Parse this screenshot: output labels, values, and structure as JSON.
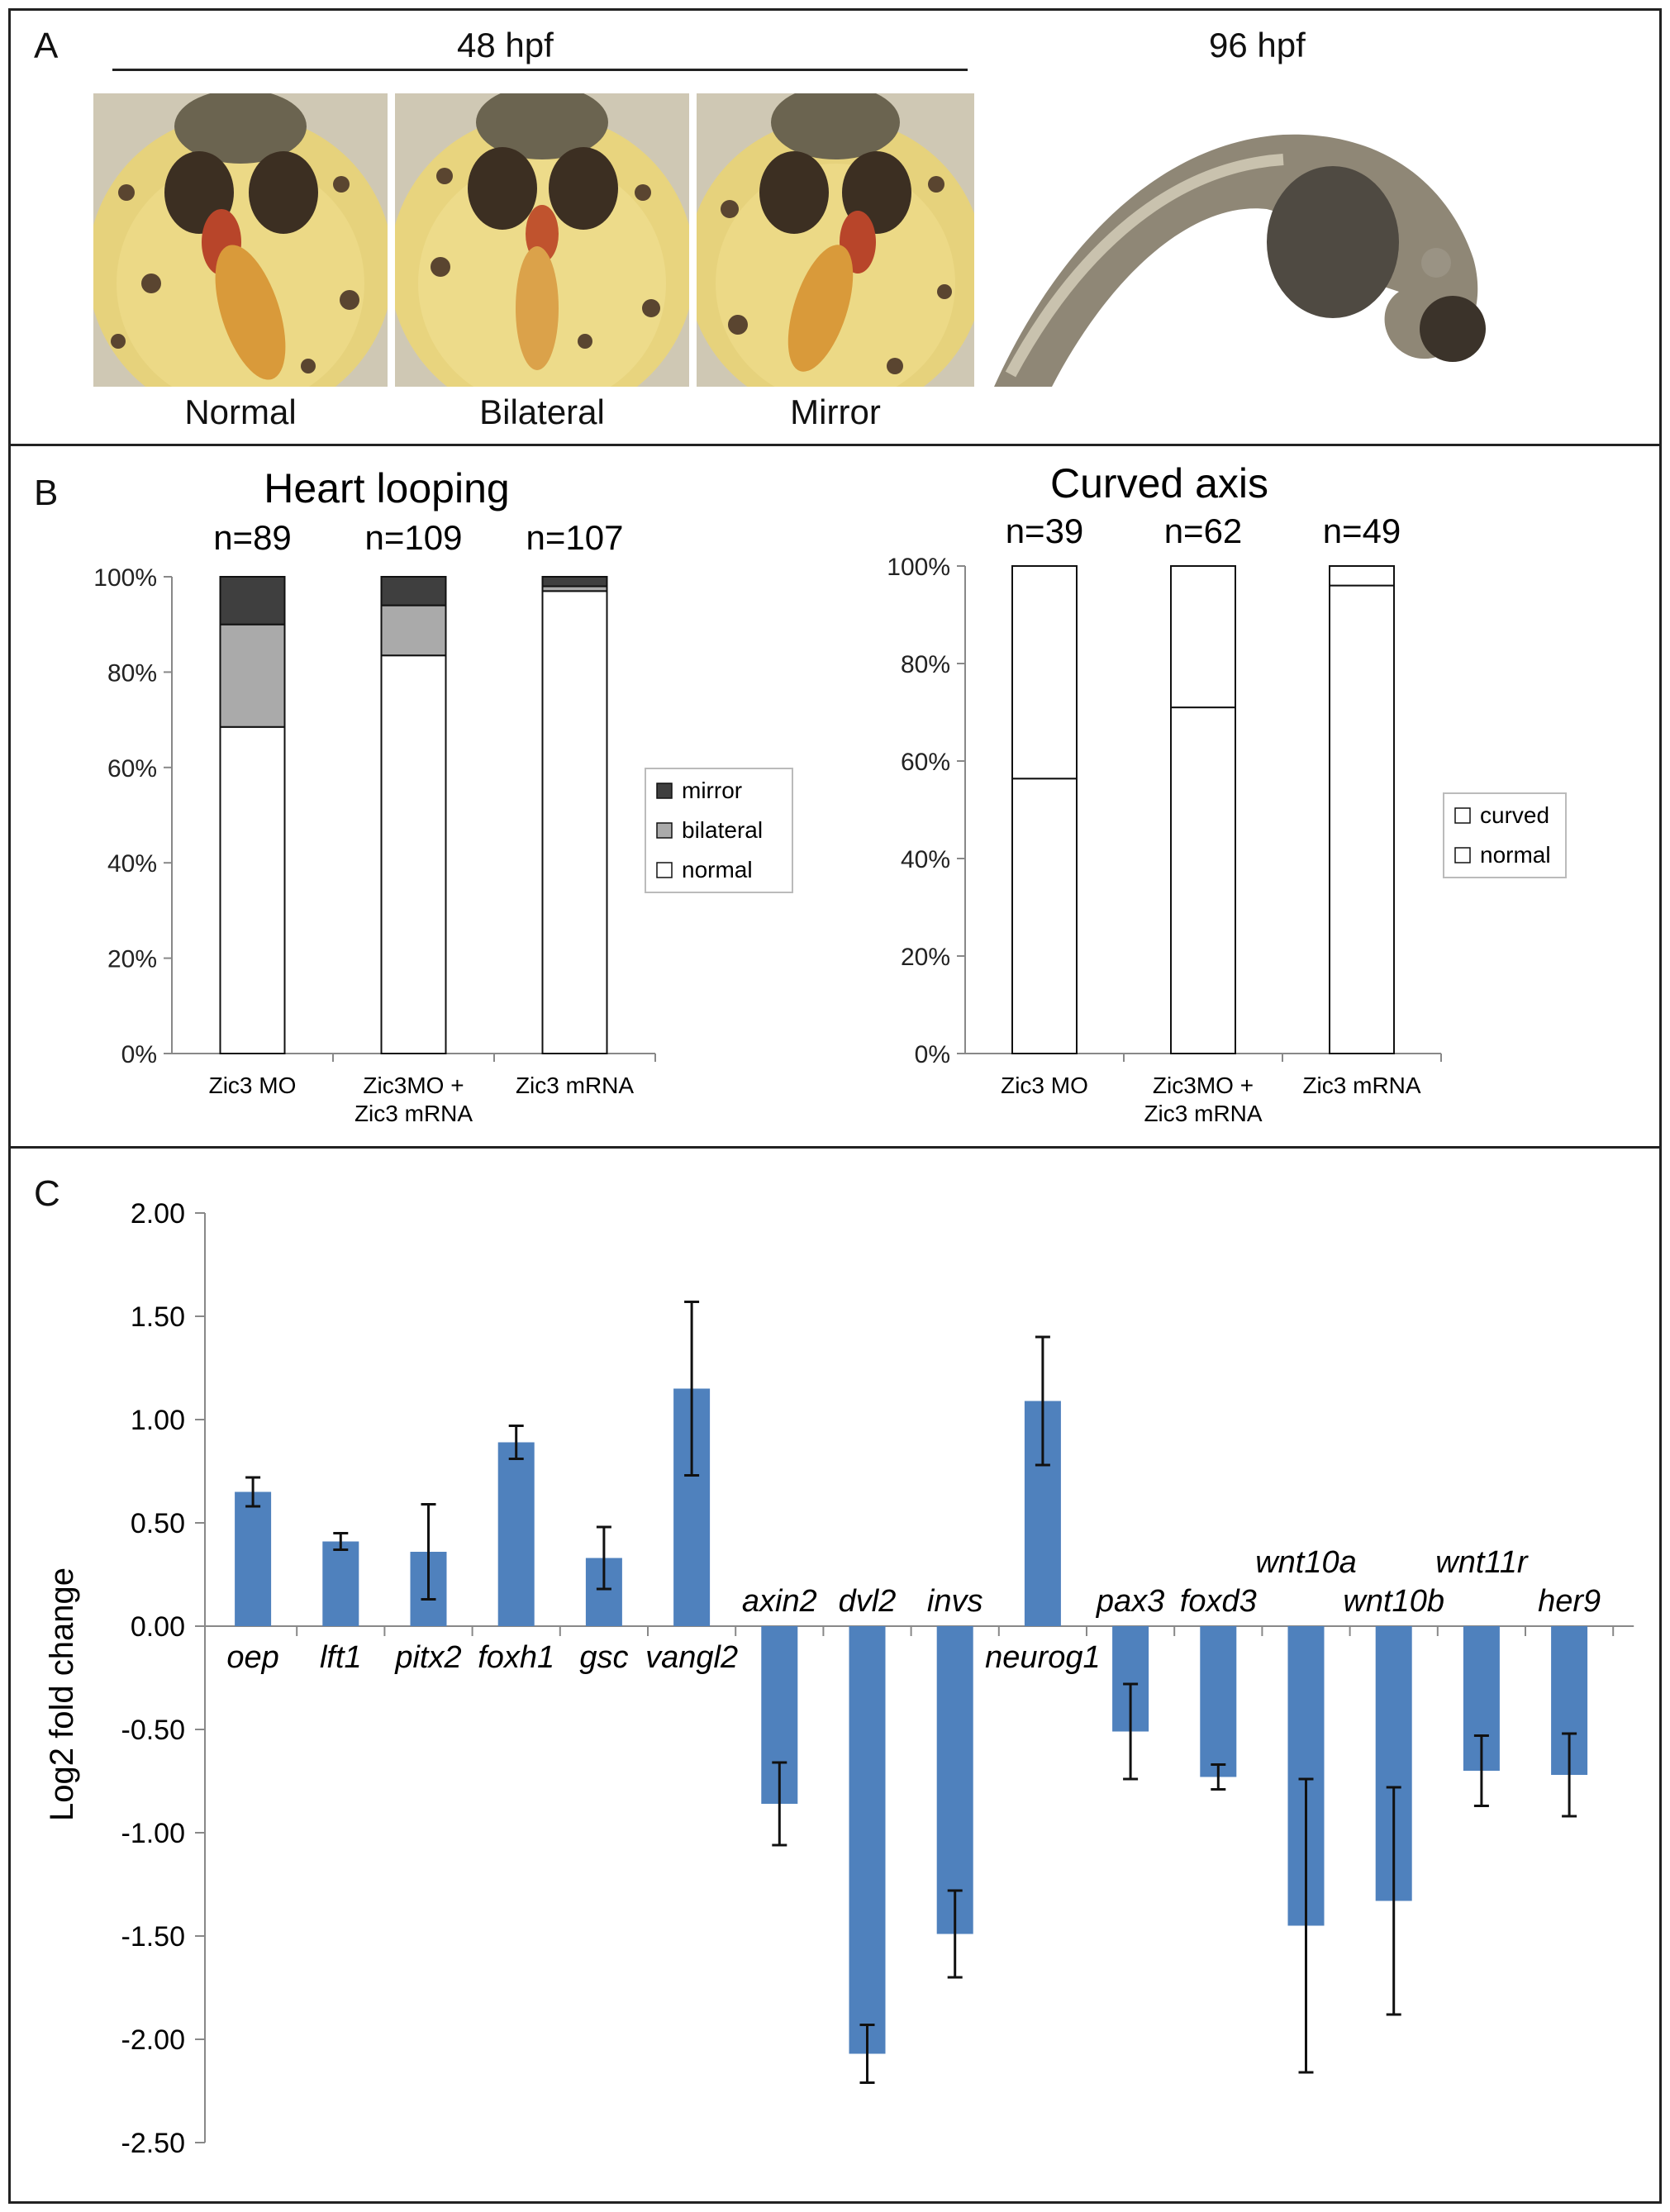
{
  "panelA": {
    "letter": "A",
    "header_48": "48 hpf",
    "header_96": "96 hpf",
    "captions": [
      "Normal",
      "Bilateral",
      "Mirror"
    ]
  },
  "panelB": {
    "letter": "B",
    "legend_left": [
      "mirror",
      "bilateral",
      "normal"
    ],
    "legend_right": [
      "curved",
      "normal"
    ],
    "yticks": [
      "100%",
      "80%",
      "60%",
      "40%",
      "20%",
      "0%"
    ]
  },
  "panelC": {
    "letter": "C"
  },
  "colors": {
    "mirror": "#3f3f3f",
    "bilateral": "#aaaaaa",
    "normal": "#ffffff",
    "bar_blue": "#4f81bd",
    "embryo_yellow": "#e8d47a"
  },
  "chart_data": [
    {
      "type": "bar",
      "stacked": true,
      "title": "Heart looping",
      "categories": [
        "Zic3 MO",
        "Zic3MO +\nZic3 mRNA",
        "Zic3 mRNA"
      ],
      "category_lines": [
        [
          "Zic3 MO"
        ],
        [
          "Zic3MO +",
          "Zic3 mRNA"
        ],
        [
          "Zic3 mRNA"
        ]
      ],
      "n_labels": [
        "n=89",
        "n=109",
        "n=107"
      ],
      "series": [
        {
          "name": "normal",
          "values": [
            68.5,
            83.5,
            97
          ]
        },
        {
          "name": "bilateral",
          "values": [
            21.5,
            10.5,
            1
          ]
        },
        {
          "name": "mirror",
          "values": [
            10,
            6,
            2
          ]
        }
      ],
      "ylim": [
        0,
        100
      ],
      "yticks": [
        "0%",
        "20%",
        "40%",
        "60%",
        "80%",
        "100%"
      ],
      "legend": "right"
    },
    {
      "type": "bar",
      "stacked": true,
      "title": "Curved axis",
      "categories": [
        "Zic3 MO",
        "Zic3MO +\nZic3 mRNA",
        "Zic3 mRNA"
      ],
      "category_lines": [
        [
          "Zic3 MO"
        ],
        [
          "Zic3MO +",
          "Zic3 mRNA"
        ],
        [
          "Zic3 mRNA"
        ]
      ],
      "n_labels": [
        "n=39",
        "n=62",
        "n=49"
      ],
      "series": [
        {
          "name": "normal",
          "values": [
            56.4,
            71,
            96
          ]
        },
        {
          "name": "curved",
          "values": [
            43.6,
            29,
            4
          ]
        }
      ],
      "ylim": [
        0,
        100
      ],
      "yticks": [
        "0%",
        "20%",
        "40%",
        "60%",
        "80%",
        "100%"
      ],
      "legend": "right"
    },
    {
      "type": "bar",
      "categories": [
        "oep",
        "lft1",
        "pitx2",
        "foxh1",
        "gsc",
        "vangl2",
        "axin2",
        "dvl2",
        "invs",
        "neurog1",
        "pax3",
        "foxd3",
        "wnt10a",
        "wnt10b",
        "wnt11r",
        "her9"
      ],
      "values": [
        0.65,
        0.41,
        0.36,
        0.89,
        0.33,
        1.15,
        -0.86,
        -2.07,
        -1.49,
        1.09,
        -0.51,
        -0.73,
        -1.45,
        -1.33,
        -0.7,
        -0.72
      ],
      "errors": [
        0.07,
        0.04,
        0.23,
        0.08,
        0.15,
        0.42,
        0.2,
        0.14,
        0.21,
        0.31,
        0.23,
        0.06,
        0.71,
        0.55,
        0.17,
        0.2
      ],
      "ylabel": "Log2 fold change",
      "ylim": [
        -2.5,
        2.0
      ],
      "yticks": [
        "2.00",
        "1.50",
        "1.00",
        "0.50",
        "0.00",
        "-0.50",
        "-1.00",
        "-1.50",
        "-2.00",
        "-2.50"
      ],
      "error_bars": true,
      "italic_category_labels": true
    }
  ]
}
